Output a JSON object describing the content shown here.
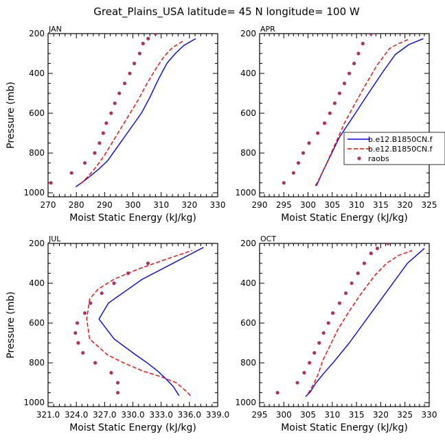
{
  "figure": {
    "title": "Great_Plains_USA  latitude= 45 N longitude= 100 W"
  },
  "colors": {
    "model1": "#0000ff",
    "model2": "#ff0000",
    "raobs": "#b0305f",
    "axis": "#000000"
  },
  "legend": {
    "placement": "overlapping right edge of APR panel",
    "entries": [
      {
        "label": "b.e12.B1850CN.f",
        "style": "solid",
        "color_key": "model1"
      },
      {
        "label": "b.e12.B1850CN.f",
        "style": "dashed",
        "color_key": "model2"
      },
      {
        "label": "raobs",
        "style": "dots",
        "color_key": "raobs"
      }
    ]
  },
  "chart_data": [
    {
      "type": "line",
      "panel": "JAN",
      "xlabel": "Moist Static Energy (kJ/kg)",
      "ylabel": "Pressure (mb)",
      "xlim": [
        270,
        330
      ],
      "ylim": [
        1020,
        200
      ],
      "xticks": [
        270,
        280,
        290,
        300,
        310,
        320,
        330
      ],
      "xtick_labels": [
        "270",
        "280",
        "290",
        "300",
        "310",
        "320",
        "330"
      ],
      "yticks": [
        200,
        400,
        600,
        800,
        1000
      ],
      "ytick_labels": [
        "200",
        "400",
        "600",
        "800",
        "1000"
      ],
      "series": [
        {
          "color_key": "model1",
          "style": "solid",
          "x": [
            279.8,
            282,
            285,
            288,
            291,
            294,
            297,
            300,
            303,
            306,
            309,
            312,
            315,
            318,
            322.2
          ],
          "y": [
            970,
            948,
            915,
            880,
            840,
            780,
            720,
            660,
            600,
            520,
            430,
            350,
            300,
            260,
            225
          ]
        },
        {
          "color_key": "model2",
          "style": "dashed",
          "x": [
            281.5,
            284,
            287,
            290,
            293,
            296,
            299,
            302,
            305,
            308,
            311,
            314,
            318
          ],
          "y": [
            955,
            920,
            870,
            810,
            740,
            670,
            600,
            530,
            450,
            380,
            315,
            270,
            235
          ]
        },
        {
          "color_key": "raobs",
          "style": "dots",
          "x": [
            271.0,
            278.3,
            283.0,
            286.5,
            288.2,
            289.5,
            290.6,
            292.3,
            293.6,
            295.2,
            297.1,
            298.9,
            300.5,
            302.4,
            303.6,
            305.4,
            308.0
          ],
          "y": [
            950,
            900,
            850,
            800,
            750,
            700,
            650,
            600,
            550,
            500,
            450,
            400,
            350,
            300,
            250,
            225,
            200
          ]
        }
      ]
    },
    {
      "type": "line",
      "panel": "APR",
      "xlabel": "Moist Static Energy (kJ/kg)",
      "ylabel": "",
      "xlim": [
        290,
        325
      ],
      "ylim": [
        1020,
        200
      ],
      "xticks": [
        290,
        295,
        300,
        305,
        310,
        315,
        320,
        325
      ],
      "xtick_labels": [
        "290",
        "295",
        "300",
        "305",
        "310",
        "315",
        "320",
        "325"
      ],
      "yticks": [
        200,
        400,
        600,
        800,
        1000
      ],
      "ytick_labels": [
        "200",
        "400",
        "600",
        "800",
        "1000"
      ],
      "series": [
        {
          "color_key": "model1",
          "style": "solid",
          "x": [
            301.7,
            302.1,
            302.8,
            304.3,
            306.5,
            309.5,
            312.6,
            315.5,
            318.0,
            320.8,
            323.8
          ],
          "y": [
            965,
            945,
            905,
            830,
            720,
            610,
            495,
            390,
            305,
            255,
            225
          ]
        },
        {
          "color_key": "model2",
          "style": "dashed",
          "x": [
            301.5,
            302.2,
            303.5,
            305.5,
            307.5,
            309.5,
            311.8,
            314.2,
            316.8,
            318.7,
            320.6
          ],
          "y": [
            965,
            935,
            870,
            760,
            650,
            560,
            460,
            360,
            275,
            250,
            230
          ]
        },
        {
          "color_key": "raobs",
          "style": "dots",
          "x": [
            295.0,
            297.0,
            298.0,
            299.0,
            300.2,
            302.0,
            303.4,
            304.5,
            305.5,
            306.5,
            307.5,
            308.5,
            309.5,
            310.4,
            311.3,
            313.0
          ],
          "y": [
            950,
            900,
            850,
            800,
            750,
            700,
            650,
            600,
            550,
            500,
            450,
            400,
            350,
            300,
            250,
            200
          ]
        }
      ]
    },
    {
      "type": "line",
      "panel": "JUL",
      "xlabel": "Moist Static Energy (kJ/kg)",
      "ylabel": "Pressure (mb)",
      "xlim": [
        321,
        339
      ],
      "ylim": [
        1020,
        200
      ],
      "xticks": [
        321,
        324,
        327,
        330,
        333,
        336,
        339
      ],
      "xtick_labels": [
        "321.0",
        "324.0",
        "327.0",
        "330.0",
        "333.0",
        "336.0",
        "339.0"
      ],
      "yticks": [
        200,
        400,
        600,
        800,
        1000
      ],
      "ytick_labels": [
        "200",
        "400",
        "600",
        "800",
        "1000"
      ],
      "series": [
        {
          "color_key": "model1",
          "style": "solid",
          "x": [
            334.9,
            334.3,
            333.5,
            332.6,
            331.5,
            330.3,
            328.0,
            326.4,
            327.4,
            331.0,
            337.5
          ],
          "y": [
            965,
            920,
            880,
            840,
            800,
            760,
            680,
            580,
            500,
            380,
            220
          ]
        },
        {
          "color_key": "model2",
          "style": "dashed",
          "x": [
            336.1,
            335.6,
            334.6,
            333.0,
            331.0,
            329.0,
            327.3,
            325.4,
            325.1,
            325.4,
            326.3,
            328.0,
            330.5,
            333.5,
            336.3
          ],
          "y": [
            965,
            940,
            900,
            870,
            840,
            800,
            760,
            680,
            580,
            480,
            430,
            380,
            330,
            280,
            235
          ]
        },
        {
          "color_key": "raobs",
          "style": "dots",
          "x": [
            328.4,
            328.4,
            327.7,
            326.0,
            324.7,
            324.2,
            323.9,
            324.1,
            324.9,
            325.5,
            326.7,
            328.0,
            329.5,
            331.6
          ],
          "y": [
            950,
            900,
            850,
            800,
            750,
            700,
            650,
            600,
            550,
            500,
            450,
            400,
            350,
            300
          ]
        }
      ]
    },
    {
      "type": "line",
      "panel": "OCT",
      "xlabel": "Moist Static Energy (kJ/kg)",
      "ylabel": "",
      "xlim": [
        295,
        330
      ],
      "ylim": [
        1020,
        200
      ],
      "xticks": [
        295,
        300,
        305,
        310,
        315,
        320,
        325,
        330
      ],
      "xtick_labels": [
        "295",
        "300",
        "305",
        "310",
        "315",
        "320",
        "325",
        "330"
      ],
      "yticks": [
        200,
        400,
        600,
        800,
        1000
      ],
      "ytick_labels": [
        "200",
        "400",
        "600",
        "800",
        "1000"
      ],
      "series": [
        {
          "color_key": "model1",
          "style": "solid",
          "x": [
            304.5,
            305.5,
            306.5,
            308.0,
            310.5,
            313.5,
            316.5,
            319.5,
            322.5,
            325.5,
            329.0
          ],
          "y": [
            970,
            945,
            905,
            860,
            790,
            700,
            600,
            500,
            400,
            300,
            225
          ]
        },
        {
          "color_key": "model2",
          "style": "dashed",
          "x": [
            305.0,
            306.3,
            307.2,
            308.0,
            309.4,
            311.2,
            313.5,
            316.0,
            318.8,
            321.2,
            323.7,
            326.5
          ],
          "y": [
            955,
            900,
            850,
            790,
            720,
            630,
            540,
            450,
            360,
            300,
            260,
            235
          ]
        },
        {
          "color_key": "raobs",
          "style": "dots",
          "x": [
            298.7,
            302.8,
            304.2,
            305.3,
            306.3,
            307.3,
            308.2,
            309.2,
            310.1,
            311.5,
            312.8,
            314.0,
            315.3,
            316.6,
            318.0,
            319.3,
            321.5
          ],
          "y": [
            950,
            900,
            850,
            800,
            750,
            700,
            650,
            600,
            550,
            500,
            450,
            400,
            350,
            300,
            250,
            225,
            200
          ]
        }
      ]
    }
  ]
}
